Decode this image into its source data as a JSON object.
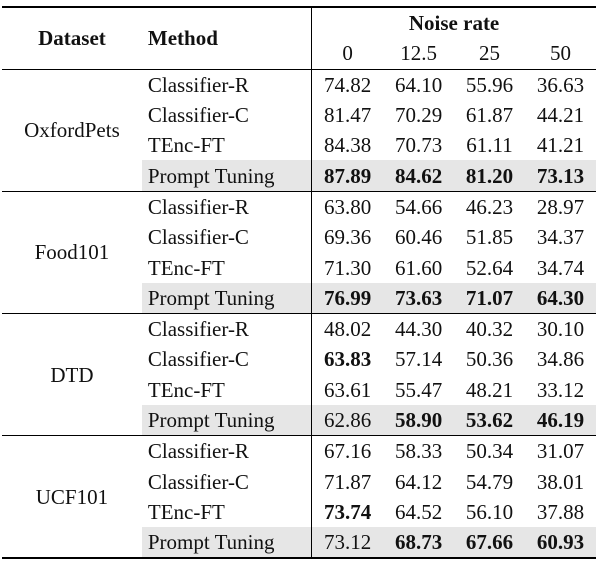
{
  "header": {
    "dataset": "Dataset",
    "method": "Method",
    "noise_rate": "Noise rate",
    "rates": [
      "0",
      "12.5",
      "25",
      "50"
    ]
  },
  "groups": [
    {
      "dataset": "OxfordPets",
      "rows": [
        {
          "method": "Classifier-R",
          "values": [
            "74.82",
            "64.10",
            "55.96",
            "36.63"
          ],
          "bold": [
            false,
            false,
            false,
            false
          ],
          "shaded": false
        },
        {
          "method": "Classifier-C",
          "values": [
            "81.47",
            "70.29",
            "61.87",
            "44.21"
          ],
          "bold": [
            false,
            false,
            false,
            false
          ],
          "shaded": false
        },
        {
          "method": "TEnc-FT",
          "values": [
            "84.38",
            "70.73",
            "61.11",
            "41.21"
          ],
          "bold": [
            false,
            false,
            false,
            false
          ],
          "shaded": false
        },
        {
          "method": "Prompt Tuning",
          "values": [
            "87.89",
            "84.62",
            "81.20",
            "73.13"
          ],
          "bold": [
            true,
            true,
            true,
            true
          ],
          "shaded": true
        }
      ]
    },
    {
      "dataset": "Food101",
      "rows": [
        {
          "method": "Classifier-R",
          "values": [
            "63.80",
            "54.66",
            "46.23",
            "28.97"
          ],
          "bold": [
            false,
            false,
            false,
            false
          ],
          "shaded": false
        },
        {
          "method": "Classifier-C",
          "values": [
            "69.36",
            "60.46",
            "51.85",
            "34.37"
          ],
          "bold": [
            false,
            false,
            false,
            false
          ],
          "shaded": false
        },
        {
          "method": "TEnc-FT",
          "values": [
            "71.30",
            "61.60",
            "52.64",
            "34.74"
          ],
          "bold": [
            false,
            false,
            false,
            false
          ],
          "shaded": false
        },
        {
          "method": "Prompt Tuning",
          "values": [
            "76.99",
            "73.63",
            "71.07",
            "64.30"
          ],
          "bold": [
            true,
            true,
            true,
            true
          ],
          "shaded": true
        }
      ]
    },
    {
      "dataset": "DTD",
      "rows": [
        {
          "method": "Classifier-R",
          "values": [
            "48.02",
            "44.30",
            "40.32",
            "30.10"
          ],
          "bold": [
            false,
            false,
            false,
            false
          ],
          "shaded": false
        },
        {
          "method": "Classifier-C",
          "values": [
            "63.83",
            "57.14",
            "50.36",
            "34.86"
          ],
          "bold": [
            true,
            false,
            false,
            false
          ],
          "shaded": false
        },
        {
          "method": "TEnc-FT",
          "values": [
            "63.61",
            "55.47",
            "48.21",
            "33.12"
          ],
          "bold": [
            false,
            false,
            false,
            false
          ],
          "shaded": false
        },
        {
          "method": "Prompt Tuning",
          "values": [
            "62.86",
            "58.90",
            "53.62",
            "46.19"
          ],
          "bold": [
            false,
            true,
            true,
            true
          ],
          "shaded": true
        }
      ]
    },
    {
      "dataset": "UCF101",
      "rows": [
        {
          "method": "Classifier-R",
          "values": [
            "67.16",
            "58.33",
            "50.34",
            "31.07"
          ],
          "bold": [
            false,
            false,
            false,
            false
          ],
          "shaded": false
        },
        {
          "method": "Classifier-C",
          "values": [
            "71.87",
            "64.12",
            "54.79",
            "38.01"
          ],
          "bold": [
            false,
            false,
            false,
            false
          ],
          "shaded": false
        },
        {
          "method": "TEnc-FT",
          "values": [
            "73.74",
            "64.52",
            "56.10",
            "37.88"
          ],
          "bold": [
            true,
            false,
            false,
            false
          ],
          "shaded": false
        },
        {
          "method": "Prompt Tuning",
          "values": [
            "73.12",
            "68.73",
            "67.66",
            "60.93"
          ],
          "bold": [
            false,
            true,
            true,
            true
          ],
          "shaded": true
        }
      ]
    }
  ]
}
